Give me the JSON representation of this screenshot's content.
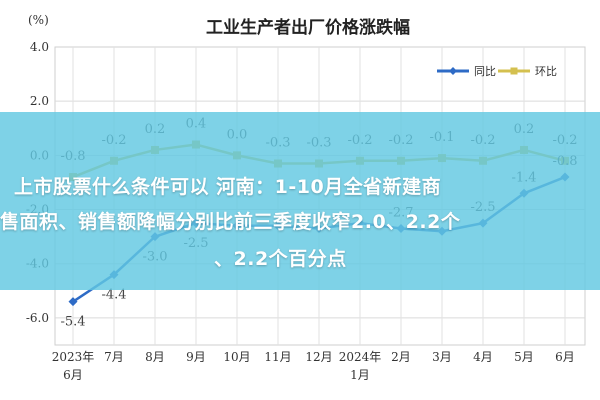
{
  "chart_data": {
    "type": "line",
    "title": "工业生产者出厂价格涨跌幅",
    "ylabel": "(%)",
    "ylim": [
      -7.0,
      4.0
    ],
    "yticks": [
      "4.0",
      "2.0",
      "0.0",
      "-2.0",
      "-4.0",
      "-6.0",
      "-8.0"
    ],
    "grid": true,
    "legend_position": "top-right",
    "categories": [
      [
        "2023年",
        "6月"
      ],
      [
        "7月"
      ],
      [
        "8月"
      ],
      [
        "9月"
      ],
      [
        "10月"
      ],
      [
        "11月"
      ],
      [
        "12月"
      ],
      [
        "2024年",
        "1月"
      ],
      [
        "2月"
      ],
      [
        "3月"
      ],
      [
        "4月"
      ],
      [
        "5月"
      ],
      [
        "6月"
      ]
    ],
    "series": [
      {
        "name": "同比",
        "color": "#2e6bc6",
        "values": [
          -5.4,
          -4.4,
          -3.0,
          -2.5,
          -2.6,
          -2.6,
          -2.7,
          -2.5,
          -2.7,
          -2.8,
          -2.5,
          -1.4,
          -0.8
        ],
        "labels": [
          "-5.4",
          "-4.4",
          "-3.0",
          "-2.5",
          "",
          "",
          "",
          "",
          "-2.7",
          "",
          "-2.5",
          "-1.4",
          "-0.8"
        ]
      },
      {
        "name": "环比",
        "color": "#d4c04f",
        "values": [
          -0.8,
          -0.2,
          0.2,
          0.4,
          0.0,
          -0.3,
          -0.3,
          -0.2,
          -0.2,
          -0.1,
          -0.2,
          0.2,
          -0.2
        ],
        "labels": [
          "-0.8",
          "-0.2",
          "0.2",
          "0.4",
          "0.0",
          "-0.3",
          "-0.3",
          "-0.2",
          "-0.2",
          "-0.1",
          "-0.2",
          "0.2",
          "-0.2"
        ]
      }
    ]
  },
  "overlay": {
    "line1": "上市股票什么条件可以 河南：1-10月全省新建商",
    "line2": "售面积、销售额降幅分别比前三季度收窄2.0、2.2个",
    "line3": "、2.2个百分点"
  }
}
